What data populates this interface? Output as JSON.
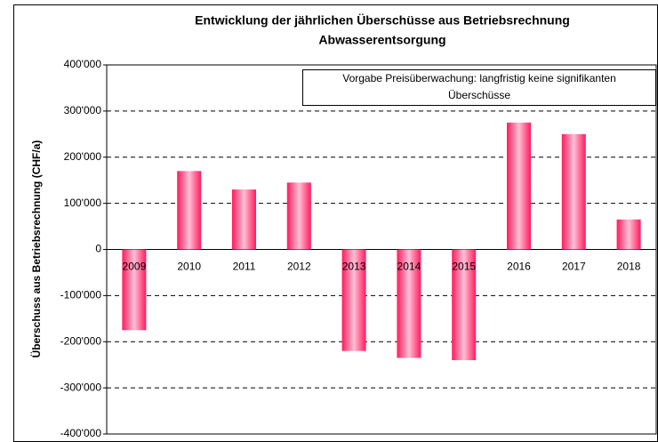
{
  "chart_data": {
    "type": "bar",
    "title": [
      "Entwicklung der jährlichen Überschüsse aus Betriebsrechnung",
      "Abwasserentsorgung"
    ],
    "y_label": "Überschuss aus Betriebsrechnung (CHF/a)",
    "annotation": [
      "Vorgabe Preisüberwachung: langfristig keine signifikanten",
      "Überschüsse"
    ],
    "categories": [
      "2009",
      "2010",
      "2011",
      "2012",
      "2013",
      "2014",
      "2015",
      "2016",
      "2017",
      "2018"
    ],
    "values": [
      -175000,
      170000,
      130000,
      145000,
      -220000,
      -235000,
      -240000,
      275000,
      250000,
      65000
    ],
    "color": "#ff1a5e",
    "ylim": [
      -400000,
      400000
    ],
    "yticks": [
      {
        "value": -400000,
        "label": "-400'000"
      },
      {
        "value": -300000,
        "label": "-300'000"
      },
      {
        "value": -200000,
        "label": "-200'000"
      },
      {
        "value": -100000,
        "label": "-100'000"
      },
      0,
      {
        "value": 100000,
        "label": "100'000"
      },
      {
        "value": 200000,
        "label": "200'000"
      },
      {
        "value": 300000,
        "label": "300'000"
      },
      {
        "value": 400000,
        "label": "400'000"
      }
    ],
    "grid": true
  }
}
